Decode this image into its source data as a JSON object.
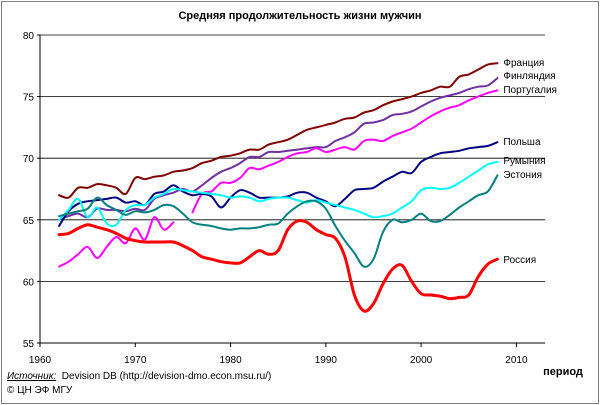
{
  "chart_data": {
    "type": "line",
    "title": "Средняя продолжительность жизни мужчин",
    "xlabel": "период",
    "ylabel": "",
    "xlim": [
      1960,
      2013
    ],
    "ylim": [
      55,
      80
    ],
    "x_ticks": [
      1960,
      1970,
      1980,
      1990,
      2000,
      2010
    ],
    "y_ticks": [
      55,
      60,
      65,
      70,
      75,
      80
    ],
    "grid": "horizontal",
    "series": [
      {
        "name": "Франция",
        "color": "#800000",
        "x": [
          1962,
          1963,
          1964,
          1965,
          1966,
          1967,
          1968,
          1969,
          1970,
          1971,
          1972,
          1973,
          1974,
          1975,
          1976,
          1977,
          1978,
          1979,
          1980,
          1981,
          1982,
          1983,
          1984,
          1985,
          1986,
          1987,
          1988,
          1989,
          1990,
          1991,
          1992,
          1993,
          1994,
          1995,
          1996,
          1997,
          1998,
          1999,
          2000,
          2001,
          2002,
          2003,
          2004,
          2005,
          2006,
          2007,
          2008
        ],
        "y": [
          67.0,
          66.8,
          67.6,
          67.6,
          67.9,
          67.8,
          67.6,
          67.1,
          68.4,
          68.3,
          68.5,
          68.6,
          68.9,
          69.0,
          69.2,
          69.6,
          69.8,
          70.1,
          70.2,
          70.4,
          70.7,
          70.7,
          71.1,
          71.3,
          71.5,
          71.9,
          72.3,
          72.5,
          72.7,
          72.9,
          73.2,
          73.3,
          73.7,
          73.9,
          74.3,
          74.6,
          74.8,
          75.0,
          75.3,
          75.5,
          75.8,
          75.8,
          76.6,
          76.8,
          77.2,
          77.6,
          77.7
        ]
      },
      {
        "name": "Финляндия",
        "color": "#7030A0",
        "x": [
          1962,
          1963,
          1964,
          1965,
          1966,
          1967,
          1968,
          1969,
          1970,
          1971,
          1972,
          1973,
          1974,
          1975,
          1976,
          1977,
          1978,
          1979,
          1980,
          1981,
          1982,
          1983,
          1984,
          1985,
          1986,
          1987,
          1988,
          1989,
          1990,
          1991,
          1992,
          1993,
          1994,
          1995,
          1996,
          1997,
          1998,
          1999,
          2000,
          2001,
          2002,
          2003,
          2004,
          2005,
          2006,
          2007,
          2008
        ],
        "y": [
          65.0,
          65.3,
          65.5,
          65.2,
          65.9,
          65.8,
          65.8,
          65.7,
          65.9,
          65.8,
          66.7,
          67.0,
          67.2,
          67.5,
          67.3,
          67.8,
          68.4,
          68.9,
          69.2,
          69.6,
          70.1,
          70.1,
          70.5,
          70.5,
          70.6,
          70.7,
          70.8,
          70.9,
          70.9,
          71.4,
          71.7,
          72.1,
          72.8,
          72.9,
          73.1,
          73.5,
          73.6,
          73.8,
          74.2,
          74.6,
          74.9,
          75.1,
          75.3,
          75.6,
          75.8,
          75.9,
          76.5
        ]
      },
      {
        "name": "Португалия",
        "color": "#FF00FF",
        "x": [
          1962,
          1963,
          1964,
          1965,
          1966,
          1967,
          1968,
          1969,
          1970,
          1971,
          1972,
          1973,
          1974,
          1976,
          1977,
          1978,
          1979,
          1980,
          1981,
          1982,
          1983,
          1984,
          1985,
          1986,
          1987,
          1988,
          1989,
          1990,
          1991,
          1992,
          1993,
          1994,
          1995,
          1996,
          1997,
          1998,
          1999,
          2000,
          2001,
          2002,
          2003,
          2004,
          2005,
          2006,
          2007,
          2008
        ],
        "y": [
          61.2,
          61.6,
          62.2,
          62.8,
          61.9,
          62.8,
          63.6,
          63.1,
          64.3,
          63.4,
          65.2,
          64.2,
          64.8,
          65.6,
          67.1,
          67.3,
          68.0,
          68.0,
          68.4,
          69.2,
          69.1,
          69.4,
          69.7,
          70.1,
          70.4,
          70.5,
          70.8,
          70.5,
          70.7,
          70.9,
          70.7,
          71.4,
          71.5,
          71.4,
          71.8,
          72.1,
          72.4,
          72.9,
          73.4,
          73.8,
          74.1,
          74.3,
          74.7,
          75.0,
          75.3,
          75.5
        ]
      },
      {
        "name": "Польша",
        "color": "#000080",
        "x": [
          1962,
          1963,
          1964,
          1965,
          1966,
          1967,
          1968,
          1969,
          1970,
          1971,
          1972,
          1973,
          1974,
          1975,
          1976,
          1977,
          1978,
          1979,
          1980,
          1981,
          1982,
          1983,
          1984,
          1985,
          1986,
          1987,
          1988,
          1989,
          1990,
          1991,
          1992,
          1993,
          1994,
          1995,
          1996,
          1997,
          1998,
          1999,
          2000,
          2001,
          2002,
          2003,
          2004,
          2005,
          2006,
          2007,
          2008
        ],
        "y": [
          64.5,
          65.7,
          66.3,
          66.5,
          66.6,
          66.7,
          66.8,
          66.4,
          66.5,
          66.2,
          67.1,
          67.3,
          67.8,
          67.3,
          67.0,
          67.1,
          66.9,
          66.0,
          66.8,
          67.4,
          67.2,
          66.8,
          66.8,
          66.8,
          66.9,
          67.2,
          67.2,
          66.8,
          66.5,
          66.1,
          66.7,
          67.4,
          67.5,
          67.6,
          68.1,
          68.5,
          68.9,
          68.8,
          69.7,
          70.1,
          70.4,
          70.5,
          70.6,
          70.8,
          70.9,
          71.0,
          71.3
        ]
      },
      {
        "name": "Румыния",
        "color": "#00FFFF",
        "x": [
          1962,
          1963,
          1964,
          1965,
          1966,
          1967,
          1968,
          1969,
          1970,
          1971,
          1972,
          1973,
          1974,
          1975,
          1976,
          1977,
          1978,
          1979,
          1980,
          1981,
          1982,
          1983,
          1984,
          1985,
          1986,
          1987,
          1988,
          1989,
          1990,
          1991,
          1992,
          1993,
          1994,
          1995,
          1996,
          1997,
          1998,
          1999,
          2000,
          2001,
          2002,
          2003,
          2004,
          2005,
          2006,
          2007,
          2008
        ],
        "y": [
          65.0,
          65.8,
          66.7,
          65.2,
          66.0,
          64.7,
          64.6,
          65.8,
          66.2,
          66.2,
          66.8,
          67.1,
          67.5,
          67.4,
          67.3,
          67.2,
          67.1,
          67.0,
          66.8,
          66.9,
          66.8,
          66.5,
          66.7,
          66.8,
          66.8,
          66.6,
          66.4,
          66.6,
          66.4,
          66.2,
          66.0,
          65.8,
          65.5,
          65.2,
          65.3,
          65.5,
          66.0,
          66.5,
          67.4,
          67.6,
          67.5,
          67.6,
          68.0,
          68.5,
          69.0,
          69.5,
          69.7
        ]
      },
      {
        "name": "Эстония",
        "color": "#008080",
        "x": [
          1962,
          1963,
          1964,
          1965,
          1966,
          1967,
          1968,
          1969,
          1970,
          1971,
          1972,
          1973,
          1974,
          1975,
          1976,
          1977,
          1978,
          1979,
          1980,
          1981,
          1982,
          1983,
          1984,
          1985,
          1986,
          1987,
          1988,
          1989,
          1990,
          1991,
          1992,
          1993,
          1994,
          1995,
          1996,
          1997,
          1998,
          1999,
          2000,
          2001,
          2002,
          2003,
          2004,
          2005,
          2006,
          2007,
          2008
        ],
        "y": [
          65.3,
          65.5,
          65.7,
          65.9,
          66.8,
          66.2,
          65.8,
          65.4,
          65.7,
          65.6,
          65.8,
          66.2,
          66.1,
          65.5,
          64.8,
          64.6,
          64.5,
          64.3,
          64.2,
          64.3,
          64.3,
          64.4,
          64.6,
          64.7,
          65.5,
          66.1,
          66.5,
          66.5,
          65.9,
          64.5,
          63.3,
          62.3,
          61.2,
          61.8,
          64.0,
          65.0,
          64.8,
          65.0,
          65.5,
          64.9,
          64.9,
          65.4,
          66.0,
          66.5,
          67.0,
          67.3,
          68.6
        ]
      },
      {
        "name": "Россия",
        "color": "#FF0000",
        "x": [
          1962,
          1963,
          1964,
          1965,
          1966,
          1967,
          1968,
          1969,
          1970,
          1971,
          1972,
          1973,
          1974,
          1975,
          1976,
          1977,
          1978,
          1979,
          1980,
          1981,
          1982,
          1983,
          1984,
          1985,
          1986,
          1987,
          1988,
          1989,
          1990,
          1991,
          1992,
          1993,
          1994,
          1995,
          1996,
          1997,
          1998,
          1999,
          2000,
          2001,
          2002,
          2003,
          2004,
          2005,
          2006,
          2007,
          2008
        ],
        "y": [
          63.8,
          63.9,
          64.3,
          64.6,
          64.4,
          64.2,
          63.9,
          63.5,
          63.3,
          63.2,
          63.2,
          63.2,
          63.2,
          62.9,
          62.5,
          62.0,
          61.8,
          61.6,
          61.5,
          61.5,
          62.0,
          62.5,
          62.2,
          62.5,
          64.2,
          64.9,
          64.8,
          64.2,
          63.8,
          63.5,
          62.0,
          58.9,
          57.6,
          58.2,
          59.8,
          61.0,
          61.3,
          60.0,
          59.0,
          58.9,
          58.8,
          58.6,
          58.7,
          58.9,
          60.4,
          61.4,
          61.8
        ]
      }
    ],
    "series_labels": [
      "Франция",
      "Финляндия",
      "Португалия",
      "Польша",
      "Румыния",
      "Эстония",
      "Россия"
    ]
  },
  "source": {
    "label": "Источник:",
    "text": "Devision DB (http://devision-dmo.econ.msu.ru/)",
    "copyright": "© ЦН ЭФ МГУ"
  }
}
